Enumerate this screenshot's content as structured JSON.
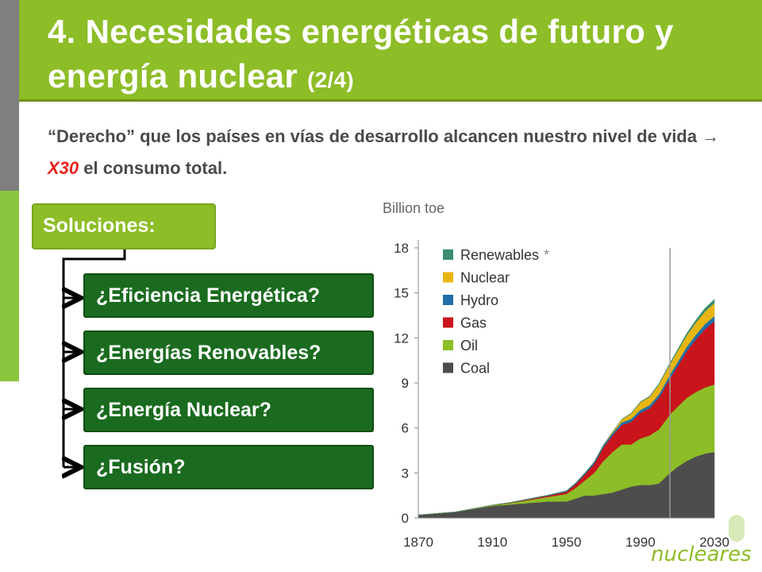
{
  "header": {
    "title_main": "4. Necesidades energéticas de futuro y energía nuclear",
    "title_sub": "(2/4)"
  },
  "subtitle": {
    "part1": "“Derecho” que los países en vías de desarrollo alcancen nuestro nivel de vida",
    "arrow": "→",
    "highlight": "X30",
    "part2": "el consumo total."
  },
  "solutions": {
    "label": "Soluciones:",
    "items": [
      "¿Eficiencia Energética?",
      "¿Energías Renovables?",
      "¿Energía Nuclear?",
      "¿Fusión?"
    ]
  },
  "logo": {
    "text": "nucleares"
  },
  "chart_data": {
    "type": "area",
    "stacked": true,
    "title": "Billion toe",
    "x": [
      1870,
      1890,
      1910,
      1920,
      1930,
      1940,
      1950,
      1955,
      1960,
      1965,
      1970,
      1975,
      1980,
      1985,
      1990,
      1995,
      2000,
      2006,
      2010,
      2015,
      2020,
      2025,
      2030
    ],
    "xticks": [
      "1870",
      "1910",
      "1950",
      "1990",
      "2030"
    ],
    "ylim": [
      0,
      18
    ],
    "yticks": [
      "0",
      "3",
      "6",
      "9",
      "12",
      "15",
      "18"
    ],
    "projection_start": 2006,
    "grid": false,
    "legend_position": "top-left",
    "legend_footnote": "*",
    "series": [
      {
        "name": "Coal",
        "color": "#4d4d4d",
        "values": [
          0.2,
          0.4,
          0.8,
          0.9,
          1.0,
          1.1,
          1.1,
          1.3,
          1.5,
          1.5,
          1.6,
          1.7,
          1.9,
          2.1,
          2.2,
          2.2,
          2.3,
          3.0,
          3.4,
          3.8,
          4.1,
          4.3,
          4.4
        ]
      },
      {
        "name": "Oil",
        "color": "#8dbd27",
        "values": [
          0.0,
          0.0,
          0.05,
          0.1,
          0.2,
          0.3,
          0.5,
          0.7,
          1.0,
          1.5,
          2.2,
          2.7,
          3.0,
          2.8,
          3.1,
          3.3,
          3.6,
          3.9,
          4.0,
          4.2,
          4.3,
          4.4,
          4.5
        ]
      },
      {
        "name": "Gas",
        "color": "#c8141a",
        "values": [
          0.0,
          0.0,
          0.0,
          0.02,
          0.05,
          0.08,
          0.15,
          0.25,
          0.4,
          0.6,
          0.9,
          1.1,
          1.3,
          1.5,
          1.7,
          1.8,
          2.1,
          2.4,
          2.7,
          3.1,
          3.5,
          3.9,
          4.2
        ]
      },
      {
        "name": "Hydro",
        "color": "#1f6fa8",
        "values": [
          0.0,
          0.0,
          0.01,
          0.02,
          0.03,
          0.04,
          0.06,
          0.08,
          0.1,
          0.12,
          0.14,
          0.16,
          0.18,
          0.2,
          0.2,
          0.22,
          0.23,
          0.25,
          0.27,
          0.29,
          0.31,
          0.33,
          0.35
        ]
      },
      {
        "name": "Nuclear",
        "color": "#e8b512",
        "values": [
          0.0,
          0.0,
          0.0,
          0.0,
          0.0,
          0.0,
          0.0,
          0.0,
          0.0,
          0.01,
          0.02,
          0.08,
          0.19,
          0.35,
          0.5,
          0.55,
          0.65,
          0.7,
          0.72,
          0.76,
          0.8,
          0.84,
          0.86
        ]
      },
      {
        "name": "Renewables",
        "color": "#3a8d6e",
        "values": [
          0.0,
          0.0,
          0.0,
          0.0,
          0.0,
          0.0,
          0.0,
          0.0,
          0.0,
          0.0,
          0.0,
          0.0,
          0.02,
          0.03,
          0.04,
          0.05,
          0.06,
          0.08,
          0.1,
          0.14,
          0.18,
          0.22,
          0.26
        ]
      }
    ],
    "legend_order": [
      "Renewables",
      "Nuclear",
      "Hydro",
      "Gas",
      "Oil",
      "Coal"
    ]
  }
}
